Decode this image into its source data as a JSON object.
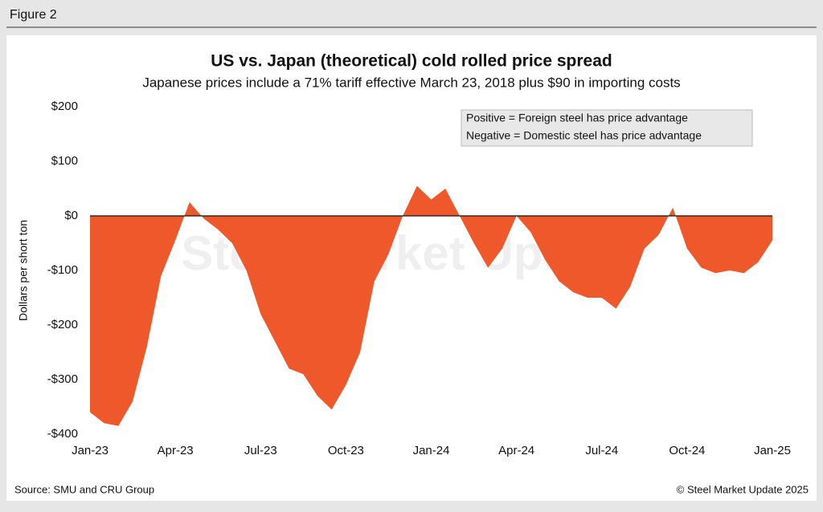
{
  "figure_label": "Figure 2",
  "chart_data": {
    "type": "area",
    "title": "US vs. Japan (theoretical) cold rolled price spread",
    "subtitle": "Japanese prices include a 71% tariff effective March 23, 2018 plus $90 in importing costs",
    "y_label": "Dollars per short ton",
    "annotations": [
      "Positive = Foreign steel has price advantage",
      "Negative = Domestic steel has price advantage"
    ],
    "watermark": "Steel Market Update",
    "categories": [
      "Jan-23",
      null,
      null,
      null,
      null,
      null,
      "Apr-23",
      null,
      null,
      null,
      null,
      null,
      "Jul-23",
      null,
      null,
      null,
      null,
      null,
      "Oct-23",
      null,
      null,
      null,
      null,
      null,
      "Jan-24",
      null,
      null,
      null,
      null,
      null,
      "Apr-24",
      null,
      null,
      null,
      null,
      null,
      "Jul-24",
      null,
      null,
      null,
      null,
      null,
      "Oct-24",
      null,
      null,
      null,
      null,
      null,
      "Jan-25"
    ],
    "values": [
      -360,
      -380,
      -385,
      -340,
      -240,
      -110,
      -45,
      25,
      -5,
      -25,
      -50,
      -100,
      -180,
      -230,
      -280,
      -290,
      -330,
      -355,
      -310,
      -250,
      -120,
      -70,
      0,
      55,
      30,
      50,
      0,
      -50,
      -95,
      -60,
      0,
      -30,
      -80,
      -120,
      -140,
      -150,
      -150,
      -170,
      -130,
      -60,
      -35,
      15,
      -60,
      -95,
      -105,
      -100,
      -105,
      -85,
      -45
    ],
    "color": "#ee582b",
    "ylim": [
      -400,
      200
    ],
    "yticks": [
      {
        "value": -400,
        "label": "-$400"
      },
      {
        "value": -300,
        "label": "-$300"
      },
      {
        "value": -200,
        "label": "-$200"
      },
      {
        "value": -100,
        "label": "-$100"
      },
      {
        "value": 0,
        "label": "$0"
      },
      {
        "value": 100,
        "label": "$100"
      },
      {
        "value": 200,
        "label": "$200"
      }
    ]
  },
  "source": "Source: SMU and CRU Group",
  "copyright": "© Steel Market Update 2025"
}
